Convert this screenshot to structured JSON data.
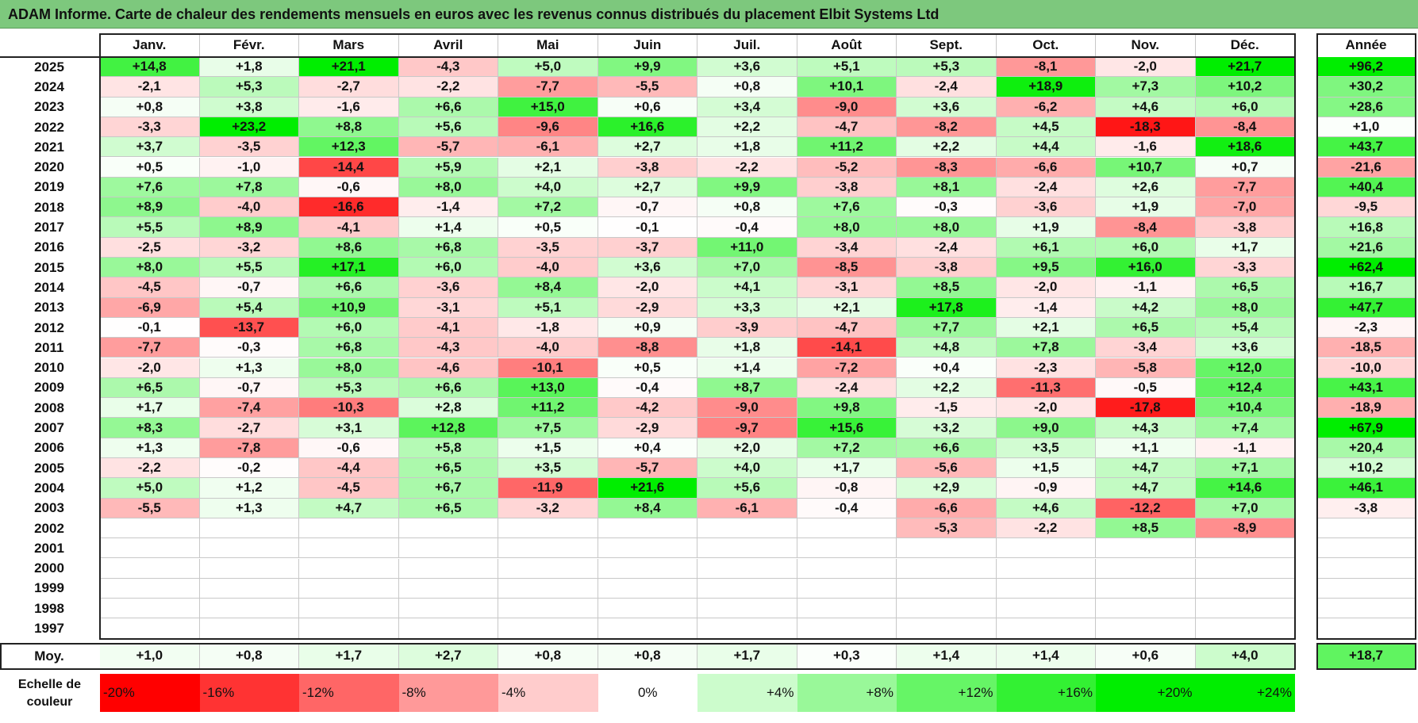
{
  "title": "ADAM Informe. Carte de chaleur des rendements mensuels en euros avec les revenus connus distribués du placement Elbit Systems Ltd",
  "chart_data": {
    "type": "heatmap",
    "columns": [
      "Janv.",
      "Févr.",
      "Mars",
      "Avril",
      "Mai",
      "Juin",
      "Juil.",
      "Août",
      "Sept.",
      "Oct.",
      "Nov.",
      "Déc."
    ],
    "year_header": "Année",
    "average_label": "Moy.",
    "rows": [
      {
        "year": "2025",
        "months": [
          "+14,8",
          "+1,8",
          "+21,1",
          "-4,3",
          "+5,0",
          "+9,9",
          "+3,6",
          "+5,1",
          "+5,3",
          "-8,1",
          "-2,0",
          "+21,7"
        ],
        "annual": "+96,2"
      },
      {
        "year": "2024",
        "months": [
          "-2,1",
          "+5,3",
          "-2,7",
          "-2,2",
          "-7,7",
          "-5,5",
          "+0,8",
          "+10,1",
          "-2,4",
          "+18,9",
          "+7,3",
          "+10,2"
        ],
        "annual": "+30,2"
      },
      {
        "year": "2023",
        "months": [
          "+0,8",
          "+3,8",
          "-1,6",
          "+6,6",
          "+15,0",
          "+0,6",
          "+3,4",
          "-9,0",
          "+3,6",
          "-6,2",
          "+4,6",
          "+6,0"
        ],
        "annual": "+28,6"
      },
      {
        "year": "2022",
        "months": [
          "-3,3",
          "+23,2",
          "+8,8",
          "+5,6",
          "-9,6",
          "+16,6",
          "+2,2",
          "-4,7",
          "-8,2",
          "+4,5",
          "-18,3",
          "-8,4"
        ],
        "annual": "+1,0"
      },
      {
        "year": "2021",
        "months": [
          "+3,7",
          "-3,5",
          "+12,3",
          "-5,7",
          "-6,1",
          "+2,7",
          "+1,8",
          "+11,2",
          "+2,2",
          "+4,4",
          "-1,6",
          "+18,6"
        ],
        "annual": "+43,7"
      },
      {
        "year": "2020",
        "months": [
          "+0,5",
          "-1,0",
          "-14,4",
          "+5,9",
          "+2,1",
          "-3,8",
          "-2,2",
          "-5,2",
          "-8,3",
          "-6,6",
          "+10,7",
          "+0,7"
        ],
        "annual": "-21,6"
      },
      {
        "year": "2019",
        "months": [
          "+7,6",
          "+7,8",
          "-0,6",
          "+8,0",
          "+4,0",
          "+2,7",
          "+9,9",
          "-3,8",
          "+8,1",
          "-2,4",
          "+2,6",
          "-7,7"
        ],
        "annual": "+40,4"
      },
      {
        "year": "2018",
        "months": [
          "+8,9",
          "-4,0",
          "-16,6",
          "-1,4",
          "+7,2",
          "-0,7",
          "+0,8",
          "+7,6",
          "-0,3",
          "-3,6",
          "+1,9",
          "-7,0"
        ],
        "annual": "-9,5"
      },
      {
        "year": "2017",
        "months": [
          "+5,5",
          "+8,9",
          "-4,1",
          "+1,4",
          "+0,5",
          "-0,1",
          "-0,4",
          "+8,0",
          "+8,0",
          "+1,9",
          "-8,4",
          "-3,8"
        ],
        "annual": "+16,8"
      },
      {
        "year": "2016",
        "months": [
          "-2,5",
          "-3,2",
          "+8,6",
          "+6,8",
          "-3,5",
          "-3,7",
          "+11,0",
          "-3,4",
          "-2,4",
          "+6,1",
          "+6,0",
          "+1,7"
        ],
        "annual": "+21,6"
      },
      {
        "year": "2015",
        "months": [
          "+8,0",
          "+5,5",
          "+17,1",
          "+6,0",
          "-4,0",
          "+3,6",
          "+7,0",
          "-8,5",
          "-3,8",
          "+9,5",
          "+16,0",
          "-3,3"
        ],
        "annual": "+62,4"
      },
      {
        "year": "2014",
        "months": [
          "-4,5",
          "-0,7",
          "+6,6",
          "-3,6",
          "+8,4",
          "-2,0",
          "+4,1",
          "-3,1",
          "+8,5",
          "-2,0",
          "-1,1",
          "+6,5"
        ],
        "annual": "+16,7"
      },
      {
        "year": "2013",
        "months": [
          "-6,9",
          "+5,4",
          "+10,9",
          "-3,1",
          "+5,1",
          "-2,9",
          "+3,3",
          "+2,1",
          "+17,8",
          "-1,4",
          "+4,2",
          "+8,0"
        ],
        "annual": "+47,7"
      },
      {
        "year": "2012",
        "months": [
          "-0,1",
          "-13,7",
          "+6,0",
          "-4,1",
          "-1,8",
          "+0,9",
          "-3,9",
          "-4,7",
          "+7,7",
          "+2,1",
          "+6,5",
          "+5,4"
        ],
        "annual": "-2,3"
      },
      {
        "year": "2011",
        "months": [
          "-7,7",
          "-0,3",
          "+6,8",
          "-4,3",
          "-4,0",
          "-8,8",
          "+1,8",
          "-14,1",
          "+4,8",
          "+7,8",
          "-3,4",
          "+3,6"
        ],
        "annual": "-18,5"
      },
      {
        "year": "2010",
        "months": [
          "-2,0",
          "+1,3",
          "+8,0",
          "-4,6",
          "-10,1",
          "+0,5",
          "+1,4",
          "-7,2",
          "+0,4",
          "-2,3",
          "-5,8",
          "+12,0"
        ],
        "annual": "-10,0"
      },
      {
        "year": "2009",
        "months": [
          "+6,5",
          "-0,7",
          "+5,3",
          "+6,6",
          "+13,0",
          "-0,4",
          "+8,7",
          "-2,4",
          "+2,2",
          "-11,3",
          "-0,5",
          "+12,4"
        ],
        "annual": "+43,1"
      },
      {
        "year": "2008",
        "months": [
          "+1,7",
          "-7,4",
          "-10,3",
          "+2,8",
          "+11,2",
          "-4,2",
          "-9,0",
          "+9,8",
          "-1,5",
          "-2,0",
          "-17,8",
          "+10,4"
        ],
        "annual": "-18,9"
      },
      {
        "year": "2007",
        "months": [
          "+8,3",
          "-2,7",
          "+3,1",
          "+12,8",
          "+7,5",
          "-2,9",
          "-9,7",
          "+15,6",
          "+3,2",
          "+9,0",
          "+4,3",
          "+7,4"
        ],
        "annual": "+67,9"
      },
      {
        "year": "2006",
        "months": [
          "+1,3",
          "-7,8",
          "-0,6",
          "+5,8",
          "+1,5",
          "+0,4",
          "+2,0",
          "+7,2",
          "+6,6",
          "+3,5",
          "+1,1",
          "-1,1"
        ],
        "annual": "+20,4"
      },
      {
        "year": "2005",
        "months": [
          "-2,2",
          "-0,2",
          "-4,4",
          "+6,5",
          "+3,5",
          "-5,7",
          "+4,0",
          "+1,7",
          "-5,6",
          "+1,5",
          "+4,7",
          "+7,1"
        ],
        "annual": "+10,2"
      },
      {
        "year": "2004",
        "months": [
          "+5,0",
          "+1,2",
          "-4,5",
          "+6,7",
          "-11,9",
          "+21,6",
          "+5,6",
          "-0,8",
          "+2,9",
          "-0,9",
          "+4,7",
          "+14,6"
        ],
        "annual": "+46,1"
      },
      {
        "year": "2003",
        "months": [
          "-5,5",
          "+1,3",
          "+4,7",
          "+6,5",
          "-3,2",
          "+8,4",
          "-6,1",
          "-0,4",
          "-6,6",
          "+4,6",
          "-12,2",
          "+7,0"
        ],
        "annual": "-3,8"
      },
      {
        "year": "2002",
        "months": [
          "",
          "",
          "",
          "",
          "",
          "",
          "",
          "",
          "-5,3",
          "-2,2",
          "+8,5",
          "-8,9"
        ],
        "annual": ""
      },
      {
        "year": "2001",
        "months": [
          "",
          "",
          "",
          "",
          "",
          "",
          "",
          "",
          "",
          "",
          "",
          ""
        ],
        "annual": ""
      },
      {
        "year": "2000",
        "months": [
          "",
          "",
          "",
          "",
          "",
          "",
          "",
          "",
          "",
          "",
          "",
          ""
        ],
        "annual": ""
      },
      {
        "year": "1999",
        "months": [
          "",
          "",
          "",
          "",
          "",
          "",
          "",
          "",
          "",
          "",
          "",
          ""
        ],
        "annual": ""
      },
      {
        "year": "1998",
        "months": [
          "",
          "",
          "",
          "",
          "",
          "",
          "",
          "",
          "",
          "",
          "",
          ""
        ],
        "annual": ""
      },
      {
        "year": "1997",
        "months": [
          "",
          "",
          "",
          "",
          "",
          "",
          "",
          "",
          "",
          "",
          "",
          ""
        ],
        "annual": ""
      }
    ],
    "averages": [
      "+1,0",
      "+0,8",
      "+1,7",
      "+2,7",
      "+0,8",
      "+0,8",
      "+1,7",
      "+0,3",
      "+1,4",
      "+1,4",
      "+0,6",
      "+4,0"
    ],
    "average_annual": "+18,7",
    "color_scale": {
      "label": "Echelle de couleur",
      "stops": [
        "-20%",
        "-16%",
        "-12%",
        "-8%",
        "-4%",
        "0%",
        "+4%",
        "+8%",
        "+12%",
        "+16%",
        "+20%",
        "+24%"
      ],
      "negative_color": "#ff0000",
      "neutral_color": "#ffffff",
      "positive_color": "#00ee00"
    }
  }
}
